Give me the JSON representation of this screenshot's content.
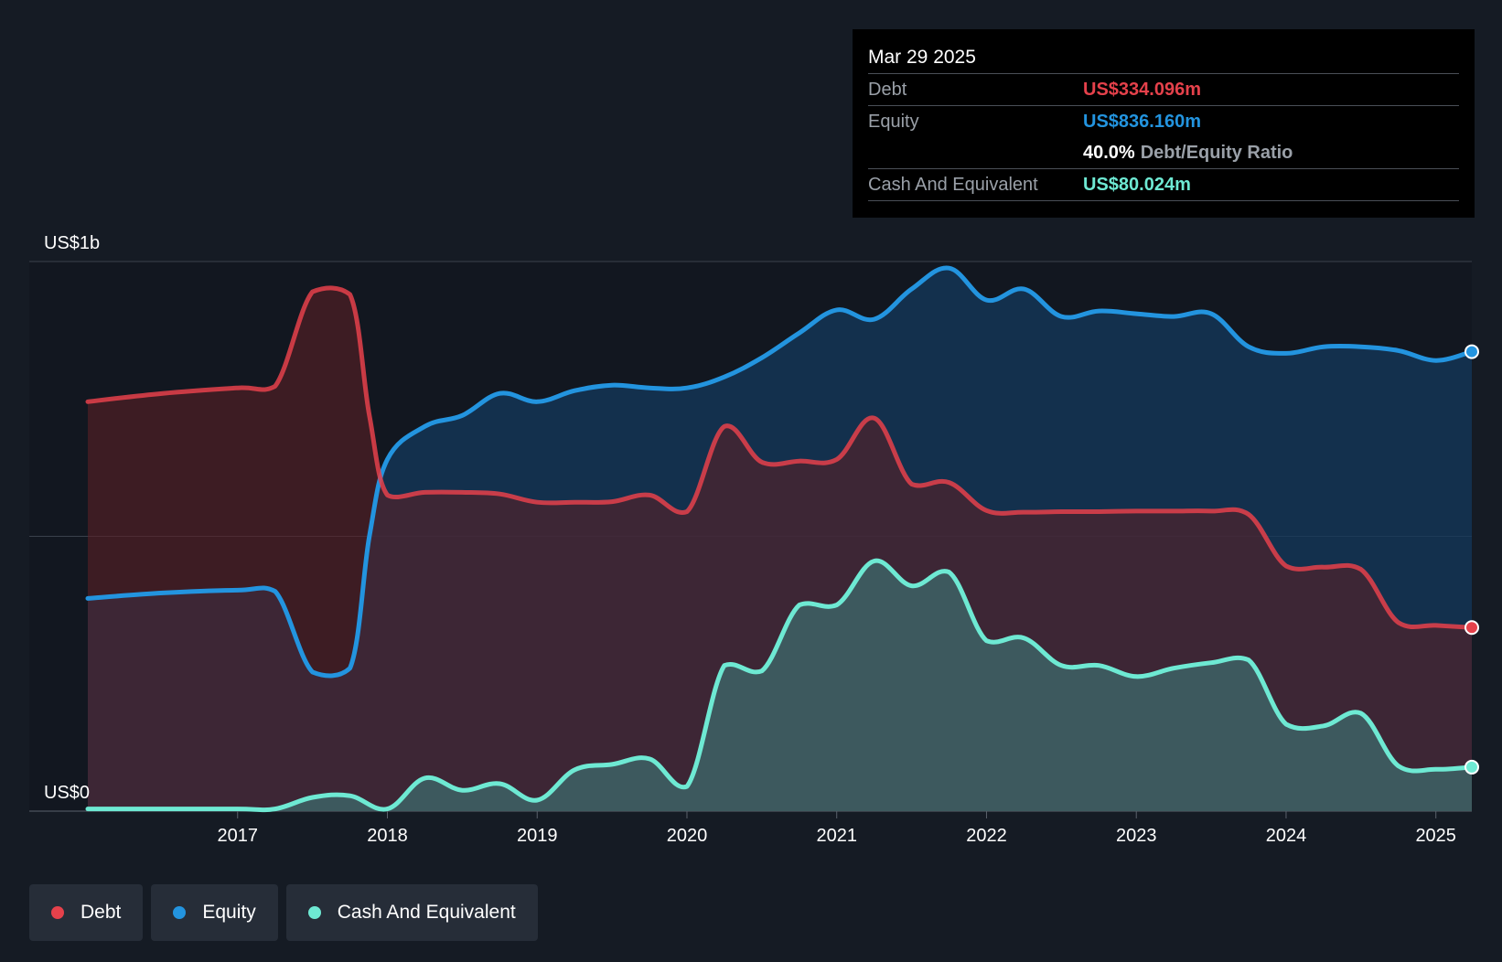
{
  "colors": {
    "debt": "#e5414b",
    "equity": "#2394df",
    "cash": "#6ee9d3",
    "background": "#151b24",
    "plot_background": "#121720"
  },
  "tooltip": {
    "date": "Mar 29 2025",
    "debt_label": "Debt",
    "debt_value": "US$334.096m",
    "equity_label": "Equity",
    "equity_value": "US$836.160m",
    "ratio_value": "40.0%",
    "ratio_label": "Debt/Equity Ratio",
    "cash_label": "Cash And Equivalent",
    "cash_value": "US$80.024m"
  },
  "legend": [
    {
      "label": "Debt",
      "color": "#e5414b"
    },
    {
      "label": "Equity",
      "color": "#2394df"
    },
    {
      "label": "Cash And Equivalent",
      "color": "#6ee9d3"
    }
  ],
  "chart_data": {
    "type": "area",
    "title": "",
    "xlabel": "",
    "ylabel": "",
    "y_unit": "US$m",
    "ylim": [
      0,
      1000
    ],
    "y_tick_labels": [
      {
        "value": 0,
        "label": "US$0"
      },
      {
        "value": 1000,
        "label": "US$1b"
      }
    ],
    "xlim": [
      2016.0,
      2025.24
    ],
    "x_ticks": [
      2017,
      2018,
      2019,
      2020,
      2021,
      2022,
      2023,
      2024,
      2025
    ],
    "grid": true,
    "legend_position": "bottom-left",
    "series": [
      {
        "name": "Debt",
        "points": [
          [
            2016.0,
            745
          ],
          [
            2016.5,
            760
          ],
          [
            2017.0,
            770
          ],
          [
            2017.25,
            773
          ],
          [
            2017.5,
            945
          ],
          [
            2017.75,
            940
          ],
          [
            2017.88,
            720
          ],
          [
            2018.0,
            575
          ],
          [
            2018.25,
            580
          ],
          [
            2018.5,
            580
          ],
          [
            2018.75,
            577
          ],
          [
            2019.0,
            562
          ],
          [
            2019.25,
            562
          ],
          [
            2019.5,
            563
          ],
          [
            2019.75,
            575
          ],
          [
            2020.0,
            545
          ],
          [
            2020.25,
            700
          ],
          [
            2020.5,
            635
          ],
          [
            2020.75,
            637
          ],
          [
            2021.0,
            640
          ],
          [
            2021.25,
            715
          ],
          [
            2021.5,
            595
          ],
          [
            2021.75,
            598
          ],
          [
            2022.0,
            547
          ],
          [
            2022.25,
            544
          ],
          [
            2022.5,
            545
          ],
          [
            2022.75,
            545
          ],
          [
            2023.0,
            546
          ],
          [
            2023.25,
            546
          ],
          [
            2023.5,
            546
          ],
          [
            2023.75,
            540
          ],
          [
            2024.0,
            446
          ],
          [
            2024.25,
            444
          ],
          [
            2024.5,
            440
          ],
          [
            2024.75,
            343
          ],
          [
            2025.0,
            338
          ],
          [
            2025.24,
            334
          ]
        ]
      },
      {
        "name": "Equity",
        "points": [
          [
            2016.0,
            387
          ],
          [
            2016.5,
            397
          ],
          [
            2017.0,
            402
          ],
          [
            2017.25,
            400
          ],
          [
            2017.5,
            253
          ],
          [
            2017.75,
            260
          ],
          [
            2017.88,
            500
          ],
          [
            2018.0,
            640
          ],
          [
            2018.25,
            700
          ],
          [
            2018.5,
            720
          ],
          [
            2018.75,
            760
          ],
          [
            2019.0,
            745
          ],
          [
            2019.25,
            765
          ],
          [
            2019.5,
            775
          ],
          [
            2019.75,
            770
          ],
          [
            2020.0,
            770
          ],
          [
            2020.25,
            790
          ],
          [
            2020.5,
            825
          ],
          [
            2020.75,
            870
          ],
          [
            2021.0,
            912
          ],
          [
            2021.25,
            895
          ],
          [
            2021.5,
            950
          ],
          [
            2021.75,
            988
          ],
          [
            2022.0,
            930
          ],
          [
            2022.25,
            950
          ],
          [
            2022.5,
            900
          ],
          [
            2022.75,
            910
          ],
          [
            2023.0,
            905
          ],
          [
            2023.25,
            900
          ],
          [
            2023.5,
            905
          ],
          [
            2023.75,
            845
          ],
          [
            2024.0,
            833
          ],
          [
            2024.25,
            845
          ],
          [
            2024.5,
            845
          ],
          [
            2024.75,
            838
          ],
          [
            2025.0,
            820
          ],
          [
            2025.24,
            836
          ]
        ]
      },
      {
        "name": "Cash And Equivalent",
        "points": [
          [
            2016.0,
            4
          ],
          [
            2016.5,
            4
          ],
          [
            2017.0,
            4
          ],
          [
            2017.25,
            4
          ],
          [
            2017.5,
            25
          ],
          [
            2017.75,
            28
          ],
          [
            2018.0,
            4
          ],
          [
            2018.25,
            60
          ],
          [
            2018.5,
            38
          ],
          [
            2018.75,
            50
          ],
          [
            2019.0,
            20
          ],
          [
            2019.25,
            75
          ],
          [
            2019.5,
            85
          ],
          [
            2019.75,
            95
          ],
          [
            2020.0,
            45
          ],
          [
            2020.25,
            265
          ],
          [
            2020.5,
            255
          ],
          [
            2020.75,
            375
          ],
          [
            2021.0,
            375
          ],
          [
            2021.25,
            455
          ],
          [
            2021.5,
            410
          ],
          [
            2021.75,
            435
          ],
          [
            2022.0,
            310
          ],
          [
            2022.25,
            315
          ],
          [
            2022.5,
            265
          ],
          [
            2022.75,
            265
          ],
          [
            2023.0,
            245
          ],
          [
            2023.25,
            260
          ],
          [
            2023.5,
            270
          ],
          [
            2023.75,
            275
          ],
          [
            2024.0,
            158
          ],
          [
            2024.25,
            155
          ],
          [
            2024.5,
            178
          ],
          [
            2024.75,
            82
          ],
          [
            2025.0,
            76
          ],
          [
            2025.24,
            80
          ]
        ]
      }
    ]
  }
}
